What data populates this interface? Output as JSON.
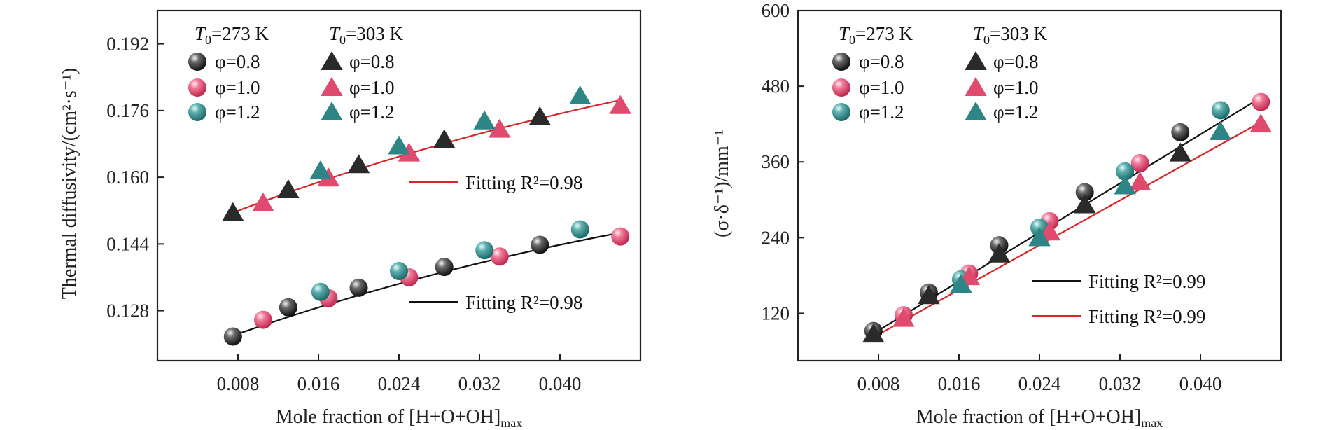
{
  "chart_data": [
    {
      "type": "scatter",
      "x": {
        "label_prefix": "Mole fraction of [H+O+OH]",
        "label_subscript": "max",
        "ticks": [
          "0.008",
          "0.016",
          "0.024",
          "0.032",
          "0.040"
        ],
        "lim": [
          0.0,
          0.048
        ]
      },
      "y": {
        "label": "Thermal diffusivity/(cm²·s⁻¹)",
        "ticks": [
          "0.128",
          "0.144",
          "0.160",
          "0.176",
          "0.192"
        ],
        "lim": [
          0.116,
          0.2
        ]
      },
      "legend": {
        "headers": [
          "T0=273 K",
          "T0=303 K"
        ],
        "entries": [
          "φ=0.8",
          "φ=1.0",
          "φ=1.2",
          "φ=0.8",
          "φ=1.0",
          "φ=1.2"
        ]
      },
      "fits": [
        {
          "label": "Fitting R²=0.98",
          "color": "#d62728",
          "x": [
            0.0075,
            0.046
          ],
          "y": [
            0.1515,
            0.1785
          ],
          "curvature": -0.4
        },
        {
          "label": "Fitting R²=0.98",
          "color": "#111111",
          "x": [
            0.0075,
            0.046
          ],
          "y": [
            0.122,
            0.1467
          ],
          "curvature": -0.4
        }
      ],
      "series": [
        {
          "name": "T0=273 K φ=0.8",
          "marker": "sphere",
          "color": "#3a3a3a",
          "x": [
            0.0075,
            0.013,
            0.02,
            0.0285,
            0.038
          ],
          "y": [
            0.1218,
            0.1288,
            0.1335,
            0.1385,
            0.1438
          ]
        },
        {
          "name": "T0=273 K φ=1.0",
          "marker": "sphere",
          "color": "#e84a6f",
          "x": [
            0.0105,
            0.017,
            0.025,
            0.034,
            0.046
          ],
          "y": [
            0.1258,
            0.131,
            0.136,
            0.141,
            0.1458
          ]
        },
        {
          "name": "T0=273 K φ=1.2",
          "marker": "sphere",
          "color": "#2b8a8a",
          "x": [
            0.0162,
            0.024,
            0.0325,
            0.042
          ],
          "y": [
            0.1325,
            0.1375,
            0.1425,
            0.1475
          ]
        },
        {
          "name": "T0=303 K φ=0.8",
          "marker": "triangle",
          "color": "#2a2a2a",
          "x": [
            0.0075,
            0.013,
            0.02,
            0.0285,
            0.038
          ],
          "y": [
            0.1515,
            0.157,
            0.163,
            0.169,
            0.1745
          ]
        },
        {
          "name": "T0=303 K φ=1.0",
          "marker": "triangle",
          "color": "#e04a6e",
          "x": [
            0.0105,
            0.017,
            0.025,
            0.034,
            0.046
          ],
          "y": [
            0.1538,
            0.1598,
            0.1658,
            0.1715,
            0.1772
          ]
        },
        {
          "name": "T0=303 K φ=1.2",
          "marker": "triangle",
          "color": "#2e8585",
          "x": [
            0.0162,
            0.024,
            0.0325,
            0.042
          ],
          "y": [
            0.1615,
            0.1675,
            0.1735,
            0.1795
          ]
        }
      ]
    },
    {
      "type": "scatter",
      "x": {
        "label_prefix": "Mole fraction of [H+O+OH]",
        "label_subscript": "max",
        "ticks": [
          "0.008",
          "0.016",
          "0.024",
          "0.032",
          "0.040"
        ],
        "lim": [
          0.0,
          0.048
        ]
      },
      "y": {
        "label": "(σ·δ⁻¹)/mm⁻¹",
        "ticks": [
          "120",
          "240",
          "360",
          "480",
          "600"
        ],
        "lim": [
          45,
          600
        ]
      },
      "legend": {
        "headers": [
          "T0=273 K",
          "T0=303 K"
        ],
        "entries": [
          "φ=0.8",
          "φ=1.0",
          "φ=1.2",
          "φ=0.8",
          "φ=1.0",
          "φ=1.2"
        ]
      },
      "fits": [
        {
          "label": "Fitting R²=0.99",
          "color": "#111111",
          "x": [
            0.0075,
            0.046
          ],
          "y": [
            88,
            462
          ],
          "curvature": 0
        },
        {
          "label": "Fitting R²=0.99",
          "color": "#d62728",
          "x": [
            0.0075,
            0.046
          ],
          "y": [
            82,
            423
          ],
          "curvature": 0
        }
      ],
      "series": [
        {
          "name": "T0=273 K φ=0.8",
          "marker": "sphere",
          "color": "#3a3a3a",
          "x": [
            0.0075,
            0.013,
            0.02,
            0.0285,
            0.038
          ],
          "y": [
            92,
            153,
            228,
            312,
            407
          ]
        },
        {
          "name": "T0=273 K φ=1.0",
          "marker": "sphere",
          "color": "#e84a6f",
          "x": [
            0.0105,
            0.017,
            0.025,
            0.034,
            0.046
          ],
          "y": [
            117,
            183,
            266,
            358,
            455
          ]
        },
        {
          "name": "T0=273 K φ=1.2",
          "marker": "sphere",
          "color": "#2b8a8a",
          "x": [
            0.0162,
            0.024,
            0.0325,
            0.042
          ],
          "y": [
            174,
            256,
            345,
            442
          ]
        },
        {
          "name": "T0=303 K φ=0.8",
          "marker": "triangle",
          "color": "#2a2a2a",
          "x": [
            0.0075,
            0.013,
            0.02,
            0.0285,
            0.038
          ],
          "y": [
            87,
            148,
            214,
            292,
            374
          ]
        },
        {
          "name": "T0=303 K φ=1.0",
          "marker": "triangle",
          "color": "#e04a6e",
          "x": [
            0.0105,
            0.017,
            0.025,
            0.034,
            0.046
          ],
          "y": [
            112,
            178,
            249,
            328,
            420
          ]
        },
        {
          "name": "T0=303 K φ=1.2",
          "marker": "triangle",
          "color": "#2e8585",
          "x": [
            0.0162,
            0.024,
            0.0325,
            0.042
          ],
          "y": [
            166,
            240,
            322,
            408
          ]
        }
      ]
    }
  ]
}
